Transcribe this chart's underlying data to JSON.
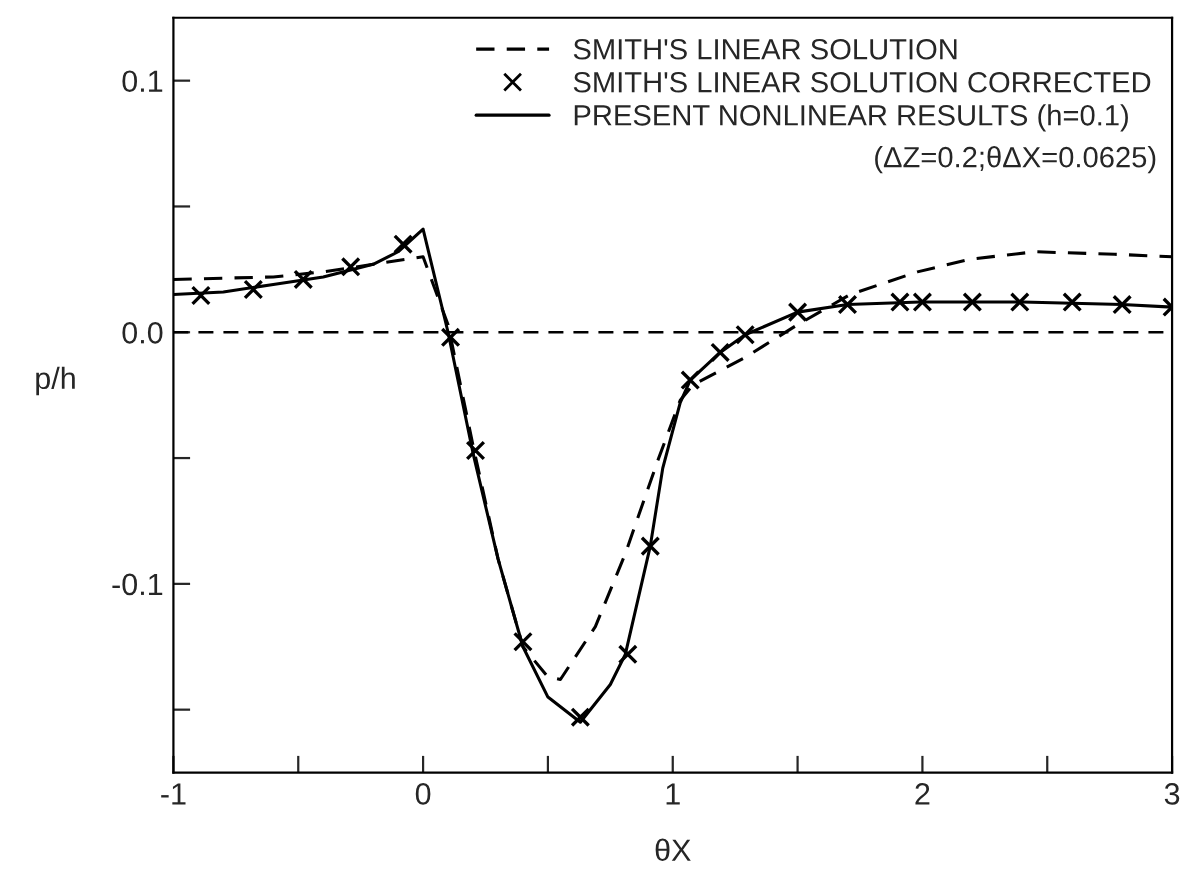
{
  "chart_data": {
    "type": "line",
    "xlabel": "θX",
    "ylabel": "p/h",
    "xlim": [
      -1,
      3
    ],
    "ylim": [
      -0.175,
      0.125
    ],
    "xticks": [
      -1,
      {
        "value": -0.5,
        "label": null
      },
      0,
      {
        "value": 0.5,
        "label": null
      },
      1,
      {
        "value": 1.5,
        "label": null
      },
      2,
      {
        "value": 2.5,
        "label": null
      },
      3
    ],
    "yticks": [
      {
        "value": -0.15,
        "label": null
      },
      -0.1,
      {
        "value": -0.05,
        "label": null
      },
      {
        "value": 0,
        "label": "0.0"
      },
      {
        "value": 0.05,
        "label": null
      },
      0.1
    ],
    "grid": false,
    "legend": "top right",
    "ref_lines": [
      {
        "axis": "y",
        "value": 0,
        "line_style": "dashed",
        "color": "#000000"
      }
    ],
    "annotations": [
      "(ΔZ=0.2;θΔX=0.0625)"
    ],
    "series": [
      {
        "name": "SMITH'S LINEAR SOLUTION",
        "line_style": "dashed",
        "marker": "none",
        "color": "#000000",
        "x": [
          -1,
          -0.6,
          -0.4,
          -0.2,
          0,
          0.1,
          0.2,
          0.3,
          0.4,
          0.5,
          0.55,
          0.69,
          0.81,
          0.94,
          1.03,
          1.08,
          1.29,
          1.5,
          1.71,
          1.98,
          2.19,
          2.45,
          2.77,
          3.0
        ],
        "values": [
          0.021,
          0.022,
          0.024,
          0.027,
          0.03,
          0.003,
          -0.045,
          -0.09,
          -0.125,
          -0.137,
          -0.138,
          -0.117,
          -0.088,
          -0.051,
          -0.027,
          -0.021,
          -0.01,
          0.003,
          0.015,
          0.024,
          0.029,
          0.032,
          0.031,
          0.03
        ]
      },
      {
        "name": "SMITH'S LINEAR SOLUTION CORRECTED",
        "type": "scatter",
        "marker": "cross",
        "color": "#000000",
        "x": [
          -0.89,
          -0.68,
          -0.48,
          -0.29,
          -0.08,
          0.11,
          0.21,
          0.4,
          0.63,
          0.82,
          0.91,
          1.07,
          1.19,
          1.29,
          1.5,
          1.7,
          1.91,
          2.0,
          2.2,
          2.39,
          2.6,
          2.8,
          3.0
        ],
        "values": [
          0.0146,
          0.017,
          0.021,
          0.026,
          0.035,
          -0.002,
          -0.047,
          -0.123,
          -0.153,
          -0.128,
          -0.085,
          -0.019,
          -0.008,
          -0.001,
          0.008,
          0.011,
          0.012,
          0.012,
          0.012,
          0.012,
          0.012,
          0.011,
          0.01
        ]
      },
      {
        "name": "PRESENT NONLINEAR RESULTS (h=0.1)",
        "line_style": "solid",
        "marker": "none",
        "color": "#000000",
        "x": [
          -1,
          -0.8,
          -0.6,
          -0.4,
          -0.2,
          -0.1,
          0,
          0.1,
          0.2,
          0.3,
          0.4,
          0.5,
          0.63,
          0.75,
          0.81,
          0.91,
          0.96,
          1.03,
          1.07,
          1.19,
          1.29,
          1.5,
          1.7,
          1.99,
          2.4,
          2.8,
          3.0
        ],
        "values": [
          0.015,
          0.016,
          0.019,
          0.022,
          0.027,
          0.032,
          0.041,
          0,
          -0.048,
          -0.09,
          -0.125,
          -0.145,
          -0.155,
          -0.14,
          -0.128,
          -0.085,
          -0.054,
          -0.028,
          -0.019,
          -0.008,
          -0.001,
          0.008,
          0.011,
          0.012,
          0.012,
          0.011,
          0.01
        ]
      }
    ]
  }
}
